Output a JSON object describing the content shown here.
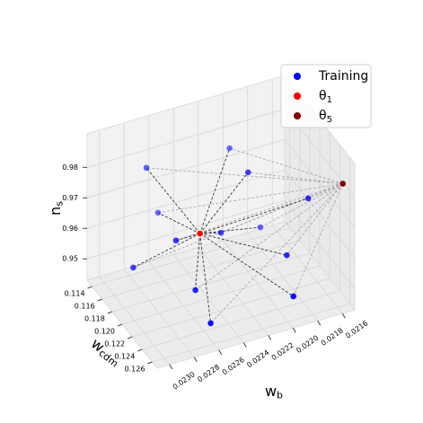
{
  "chart_data": {
    "type": "scatter3d",
    "xlabel": "wb",
    "ylabel": "wcdm",
    "zlabel": "ns",
    "xlim": [
      0.0215,
      0.0231
    ],
    "xticks": [
      0.0216,
      0.0218,
      {
        "value": 0.022,
        "label": "0.0220"
      },
      0.0222,
      0.0224,
      0.0226,
      0.0228,
      {
        "value": 0.023,
        "label": "0.0230"
      }
    ],
    "ylim": [
      0.113,
      0.127
    ],
    "yticks": [
      0.114,
      0.116,
      0.118,
      {
        "value": 0.12,
        "label": "0.120"
      },
      0.122,
      0.124,
      0.126
    ],
    "zlim": [
      0.943,
      0.991
    ],
    "zticks": [
      0.95,
      0.96,
      0.97,
      0.98
    ],
    "grid": true,
    "legend": "upper right",
    "series": [
      {
        "name": "Training",
        "color": "#0000ff",
        "x": [
          0.02279,
          0.02206,
          0.02208,
          0.02264,
          0.02272,
          0.0223,
          0.02181,
          0.02165,
          0.02301,
          0.02188,
          0.02262,
          0.02261,
          0.02194
        ],
        "y": [
          0.1172,
          0.1158,
          0.12,
          0.1158,
          0.1214,
          0.12,
          0.1158,
          0.1214,
          0.12,
          0.1228,
          0.1228,
          0.1256,
          0.1256
        ],
        "z": [
          0.9848,
          0.9796,
          0.9806,
          0.9654,
          0.9688,
          0.9634,
          0.9507,
          0.9698,
          0.9605,
          0.9568,
          0.9542,
          0.949,
          0.9498
        ]
      },
      {
        "name": "θ1",
        "color": "#ff0000",
        "x": [
          0.02247
        ],
        "y": [
          0.12
        ],
        "z": [
          0.9652
        ]
      },
      {
        "name": "θ5",
        "color": "#800000",
        "x": [
          0.02152
        ],
        "y": [
          0.1251
        ],
        "z": [
          0.9807
        ]
      }
    ]
  }
}
